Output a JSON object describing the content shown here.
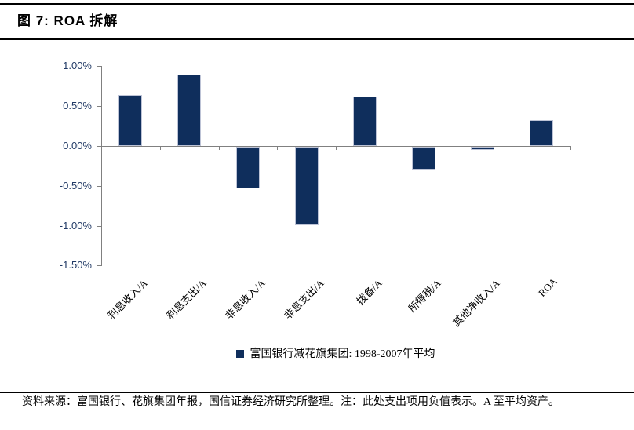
{
  "figure": {
    "title": "图 7: ROA 拆解"
  },
  "chart_data": {
    "type": "bar",
    "title": "图 7: ROA 拆解",
    "categories": [
      "利息收入/A",
      "利息支出/A",
      "非息收入/A",
      "非息支出/A",
      "拨备/A",
      "所得税/A",
      "其他净收入/A",
      "ROA"
    ],
    "series": [
      {
        "name": "富国银行减花旗集团: 1998-2007年平均",
        "values": [
          0.64,
          0.9,
          -0.52,
          -0.98,
          0.62,
          -0.3,
          -0.04,
          0.32
        ]
      }
    ],
    "value_unit": "%",
    "ylim": [
      -1.5,
      1.0
    ],
    "yticks": {
      "values": [
        1.0,
        0.5,
        0.0,
        -0.5,
        -1.0,
        -1.5
      ],
      "labels": [
        "1.00%",
        "0.50%",
        "0.00%",
        "-0.50%",
        "-1.00%",
        "-1.50%"
      ]
    },
    "grid": false,
    "legend_position": "bottom"
  },
  "colors": {
    "bar": "#0f2e5c",
    "bar_border": "#bdc3d6",
    "axis": "#808080",
    "ytick_text": "#1f3864",
    "text": "#000000"
  },
  "footer": {
    "source_note": "资料来源：富国银行、花旗集团年报，国信证券经济研究所整理。注：此处支出项用负值表示。A 至平均资产。"
  }
}
